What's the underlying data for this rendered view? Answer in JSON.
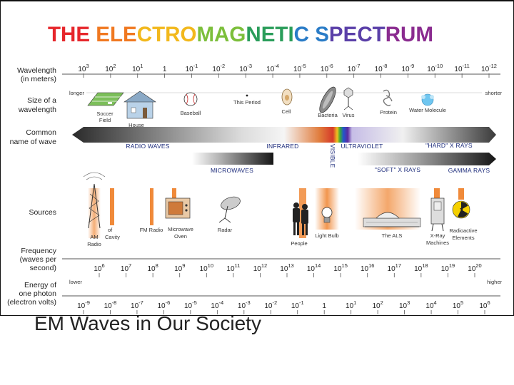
{
  "title": "THE ELECTROMAGNETIC SPECTRUM",
  "title_colors": [
    "#e6262b",
    "#f07820",
    "#f2b81c",
    "#7cbf3b",
    "#2a9d5a",
    "#2a7cc7",
    "#5a3fa8",
    "#8a2b8f"
  ],
  "caption": "EM Waves in Our Society",
  "row_labels": {
    "wavelength": [
      "Wavelength",
      "(in meters)"
    ],
    "size": [
      "Size of a",
      "wavelength"
    ],
    "common": [
      "Common",
      "name of wave"
    ],
    "sources": [
      "Sources"
    ],
    "frequency": [
      "Frequency",
      "(waves per",
      "second)"
    ],
    "energy": [
      "Energy of",
      "one photon",
      "(electron volts)"
    ]
  },
  "wavelength_ticks": [
    {
      "b": "10",
      "e": "3"
    },
    {
      "b": "10",
      "e": "2"
    },
    {
      "b": "10",
      "e": "1"
    },
    {
      "b": "1",
      "e": ""
    },
    {
      "b": "10",
      "e": "-1"
    },
    {
      "b": "10",
      "e": "-2"
    },
    {
      "b": "10",
      "e": "-3"
    },
    {
      "b": "10",
      "e": "-4"
    },
    {
      "b": "10",
      "e": "-5"
    },
    {
      "b": "10",
      "e": "-6"
    },
    {
      "b": "10",
      "e": "-7"
    },
    {
      "b": "10",
      "e": "-8"
    },
    {
      "b": "10",
      "e": "-9"
    },
    {
      "b": "10",
      "e": "-10"
    },
    {
      "b": "10",
      "e": "-11"
    },
    {
      "b": "10",
      "e": "-12"
    }
  ],
  "longer": "longer",
  "shorter": "shorter",
  "size_items": [
    {
      "label": "Soccer",
      "label2": "Field",
      "icon": "soccer-field-icon"
    },
    {
      "label": "House",
      "label2": "",
      "icon": "house-icon"
    },
    {
      "label": "Baseball",
      "label2": "",
      "icon": "baseball-icon"
    },
    {
      "label": "This Period",
      "label2": "",
      "icon": "period-icon"
    },
    {
      "label": "Cell",
      "label2": "",
      "icon": "cell-icon"
    },
    {
      "label": "Bacteria",
      "label2": "",
      "icon": "bacteria-icon"
    },
    {
      "label": "Virus",
      "label2": "",
      "icon": "virus-icon"
    },
    {
      "label": "Protein",
      "label2": "",
      "icon": "protein-icon"
    },
    {
      "label": "Water Molecule",
      "label2": "",
      "icon": "water-molecule-icon"
    }
  ],
  "wave_names": {
    "radio": "RADIO WAVES",
    "infrared": "INFRARED",
    "visible": "VISIBLE",
    "ultraviolet": "ULTRAVIOLET",
    "hard_xrays": "\"HARD\" X RAYS",
    "microwaves": "MICROWAVES",
    "soft_xrays": "\"SOFT\" X RAYS",
    "gamma": "GAMMA RAYS"
  },
  "sources": [
    {
      "label": "AM",
      "label2": "Radio",
      "icon": "radio-tower-icon"
    },
    {
      "label": "Cavity",
      "label2": "",
      "prefix": "of",
      "icon": "cavity-icon"
    },
    {
      "label": "FM Radio",
      "label2": "",
      "icon": "fm-radio-icon"
    },
    {
      "label": "Microwave",
      "label2": "Oven",
      "icon": "microwave-oven-icon"
    },
    {
      "label": "Radar",
      "label2": "",
      "icon": "radar-dish-icon"
    },
    {
      "label": "People",
      "label2": "",
      "icon": "people-icon"
    },
    {
      "label": "Light Bulb",
      "label2": "",
      "icon": "light-bulb-icon"
    },
    {
      "label": "The ALS",
      "label2": "",
      "icon": "als-building-icon"
    },
    {
      "label": "X-Ray",
      "label2": "Machines",
      "icon": "x-ray-machine-icon"
    },
    {
      "label": "Radioactive",
      "label2": "Elements",
      "icon": "radioactive-icon"
    }
  ],
  "frequency_ticks": [
    {
      "b": "10",
      "e": "6"
    },
    {
      "b": "10",
      "e": "7"
    },
    {
      "b": "10",
      "e": "8"
    },
    {
      "b": "10",
      "e": "9"
    },
    {
      "b": "10",
      "e": "10"
    },
    {
      "b": "10",
      "e": "11"
    },
    {
      "b": "10",
      "e": "12"
    },
    {
      "b": "10",
      "e": "13"
    },
    {
      "b": "10",
      "e": "14"
    },
    {
      "b": "10",
      "e": "15"
    },
    {
      "b": "10",
      "e": "16"
    },
    {
      "b": "10",
      "e": "17"
    },
    {
      "b": "10",
      "e": "18"
    },
    {
      "b": "10",
      "e": "19"
    },
    {
      "b": "10",
      "e": "20"
    }
  ],
  "lower": "lower",
  "higher": "higher",
  "energy_ticks": [
    {
      "b": "10",
      "e": "-9"
    },
    {
      "b": "10",
      "e": "-8"
    },
    {
      "b": "10",
      "e": "-7"
    },
    {
      "b": "10",
      "e": "-6"
    },
    {
      "b": "10",
      "e": "-5"
    },
    {
      "b": "10",
      "e": "-4"
    },
    {
      "b": "10",
      "e": "-3"
    },
    {
      "b": "10",
      "e": "-2"
    },
    {
      "b": "10",
      "e": "-1"
    },
    {
      "b": "1",
      "e": ""
    },
    {
      "b": "10",
      "e": "1"
    },
    {
      "b": "10",
      "e": "2"
    },
    {
      "b": "10",
      "e": "3"
    },
    {
      "b": "10",
      "e": "4"
    },
    {
      "b": "10",
      "e": "5"
    },
    {
      "b": "10",
      "e": "6"
    }
  ],
  "colors": {
    "orange": "#f08a3a",
    "band_dark": "#1a1a1a",
    "label_blue": "#1b2a7a",
    "water": "#6fc6f0"
  }
}
